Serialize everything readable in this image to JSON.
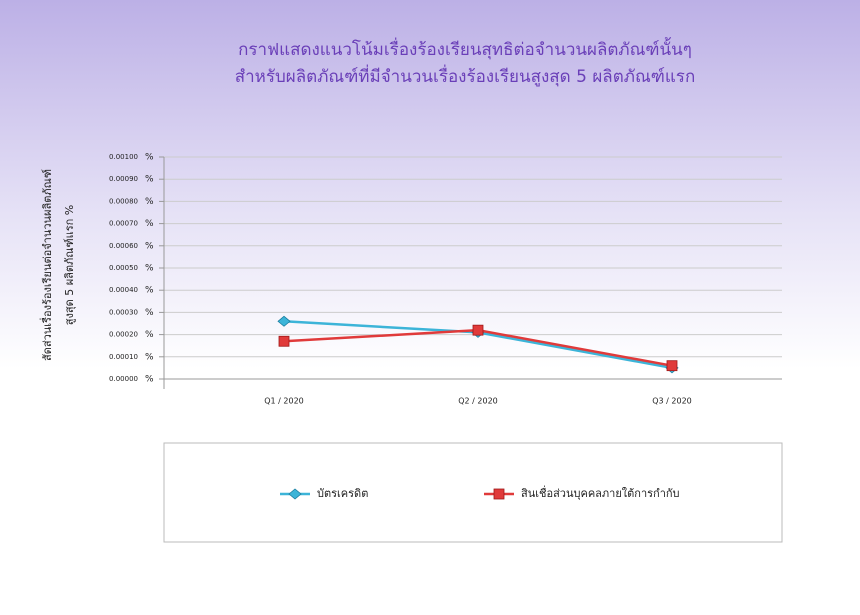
{
  "chart_data": {
    "type": "line",
    "title": [
      "กราฟแสดงแนวโน้มเรื่องร้องเรียนสุทธิต่อจำนวนผลิตภัณฑ์นั้นๆ",
      "สำหรับผลิตภัณฑ์ที่มีจำนวนเรื่องร้องเรียนสูงสุด 5 ผลิตภัณฑ์แรก"
    ],
    "y_label": [
      "สัดส่วนเรื่องร้องเรียนต่อจำนวนผลิตภัณฑ์",
      "สูงสุด 5 ผลิตภัณฑ์แรก %"
    ],
    "y_tick_unit": "%",
    "categories": [
      "Q1 / 2020",
      "Q2 / 2020",
      "Q3 / 2020"
    ],
    "series": [
      {
        "name": "บัตรเครดิต",
        "color": "#3cb4d8",
        "values": [
          0.00026,
          0.00021,
          5e-05
        ]
      },
      {
        "name": "สินเชื่อส่วนบุคคลภายใต้การกำกับ",
        "color": "#e03a3a",
        "values": [
          0.00017,
          0.00022,
          6e-05
        ]
      }
    ],
    "ylim": [
      0,
      0.001
    ],
    "yticks": [
      {
        "value": 0,
        "label": "0.00000"
      },
      {
        "value": 0.0001,
        "label": "0.00010"
      },
      {
        "value": 0.0002,
        "label": "0.00020"
      },
      {
        "value": 0.0003,
        "label": "0.00030"
      },
      {
        "value": 0.0004,
        "label": "0.00040"
      },
      {
        "value": 0.0005,
        "label": "0.00050"
      },
      {
        "value": 0.0006,
        "label": "0.00060"
      },
      {
        "value": 0.0007,
        "label": "0.00070"
      },
      {
        "value": 0.0008,
        "label": "0.00080"
      },
      {
        "value": 0.0009,
        "label": "0.00090"
      },
      {
        "value": 0.001,
        "label": "0.00100"
      }
    ],
    "grid": true
  }
}
